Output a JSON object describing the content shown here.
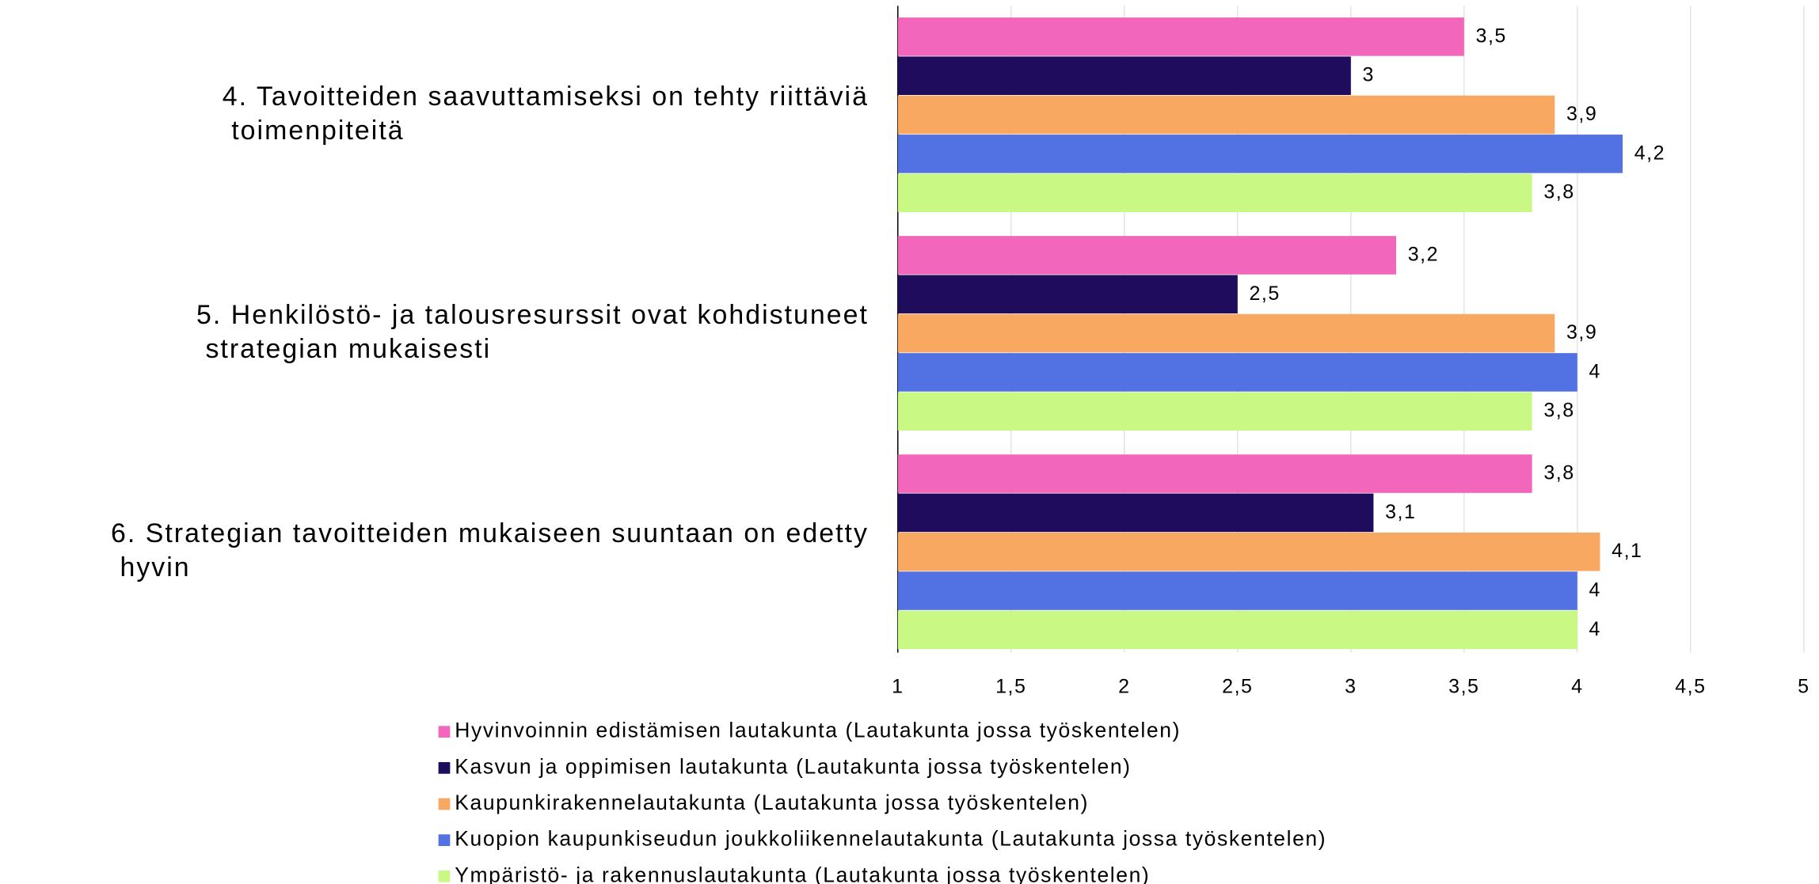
{
  "chart_data": {
    "type": "hbar",
    "categories": [
      "4. Tavoitteiden saavuttamiseksi on tehty riittäviä toimenpiteitä",
      "5. Henkilöstö- ja talousresurssit ovat kohdistuneet strategian mukaisesti",
      "6. Strategian tavoitteiden mukaiseen suuntaan on edetty hyvin"
    ],
    "series": [
      {
        "name": "Hyvinvoinnin edistämisen lautakunta (Lautakunta jossa työskentelen)",
        "color": "#f266bb",
        "values": [
          3.5,
          3.2,
          3.8
        ],
        "value_labels": [
          "3,5",
          "3,2",
          "3,8"
        ]
      },
      {
        "name": "Kasvun ja oppimisen lautakunta (Lautakunta jossa työskentelen)",
        "color": "#1f0c5c",
        "values": [
          3,
          2.5,
          3.1
        ],
        "value_labels": [
          "3",
          "2,5",
          "3,1"
        ]
      },
      {
        "name": "Kaupunkirakennelautakunta (Lautakunta jossa työskentelen)",
        "color": "#f9a862",
        "values": [
          3.9,
          3.9,
          4.1
        ],
        "value_labels": [
          "3,9",
          "3,9",
          "4,1"
        ]
      },
      {
        "name": "Kuopion kaupunkiseudun joukkoliikennelautakunta (Lautakunta jossa työskentelen)",
        "color": "#5271e2",
        "values": [
          4.2,
          4,
          4
        ],
        "value_labels": [
          "4,2",
          "4",
          "4"
        ]
      },
      {
        "name": "Ympäristö- ja rakennuslautakunta (Lautakunta jossa työskentelen)",
        "color": "#c9f984",
        "values": [
          3.8,
          3.8,
          4
        ],
        "value_labels": [
          "3,8",
          "3,8",
          "4"
        ]
      }
    ],
    "xlim": [
      1,
      5
    ],
    "xticks": [
      1,
      {
        "value": 1.5,
        "label": "1,5"
      },
      2,
      {
        "value": 2.5,
        "label": "2,5"
      },
      3,
      {
        "value": 3.5,
        "label": "3,5"
      },
      4,
      {
        "value": 4.5,
        "label": "4,5"
      },
      5
    ],
    "grid": true
  }
}
